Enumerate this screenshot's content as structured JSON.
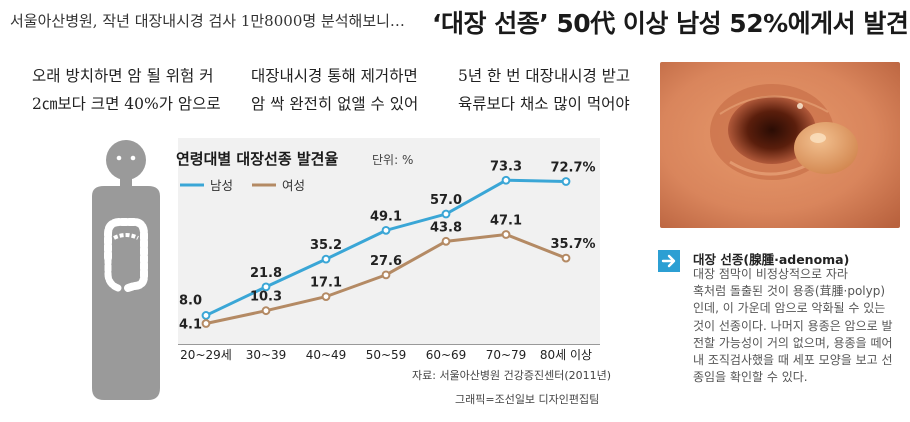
{
  "subheadline": "서울아산병원, 작년 대장내시경 검사 1만8000명 분석해보니…",
  "headline": "‘대장 선종’ 50代 이상 남성 52%에게서 발견",
  "points": [
    {
      "line1": "오래 방치하면 암 될 위험 커",
      "line2": "2㎝보다 크면 40%가 암으로"
    },
    {
      "line1": "대장내시경 통해 제거하면",
      "line2": "암 싹 완전히 없앨 수 있어"
    },
    {
      "line1": "5년 한 번 대장내시경 받고",
      "line2": "육류보다 채소 많이 먹어야"
    }
  ],
  "caption": {
    "title": "대장 선종(腺腫·adenoma)",
    "body": "대장 점막이 비정상적으로 자라\n혹처럼 돌출된 것이 용종(茸腫·polyp)\n인데, 이 가운데 암으로 악화될 수 있는\n것이 선종이다. 나머지 용종은 암으로 발\n전할 가능성이 거의 없으며, 용종을 떼어\n내 조직검사했을 때 세포 모양을 보고 선\n종임을 확인할 수 있다."
  },
  "source": "자료: 서울아산병원 건강증진센터(2011년)",
  "credit": "그래픽=조선일보 디자인편집팀",
  "icons": {
    "caption_icon": "arrow-right-icon",
    "figure": "human-body-colon-icon",
    "photo": "colon-polyp-endoscopy-photo"
  },
  "colors": {
    "male": "#3aa6d6",
    "female": "#b48a64",
    "caption_accent": "#2c9fd3"
  },
  "chart_data": {
    "type": "line",
    "title": "연령대별 대장선종 발견율",
    "unit": "단위: %",
    "categories": [
      "20~29세",
      "30~39",
      "40~49",
      "50~59",
      "60~69",
      "70~79",
      "80세 이상"
    ],
    "series": [
      {
        "name": "남성",
        "values": [
          8.0,
          21.8,
          35.2,
          49.1,
          57.0,
          73.3,
          72.7
        ],
        "labels": [
          "8.0",
          "21.8",
          "35.2",
          "49.1",
          "57.0",
          "73.3",
          "72.7%"
        ]
      },
      {
        "name": "여성",
        "values": [
          4.1,
          10.3,
          17.1,
          27.6,
          43.8,
          47.1,
          35.7
        ],
        "labels": [
          "4.1",
          "10.3",
          "17.1",
          "27.6",
          "43.8",
          "47.1",
          "35.7%"
        ]
      }
    ],
    "ylim": [
      0,
      80
    ],
    "legend": "top-left",
    "grid": false
  }
}
